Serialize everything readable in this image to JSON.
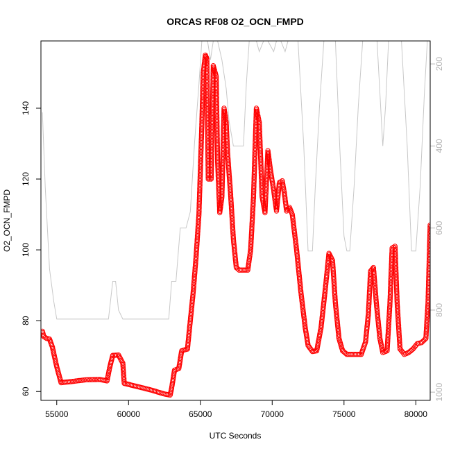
{
  "chart_data": {
    "type": "scatter",
    "title": "ORCAS RF08 O2_OCN_FMPD",
    "xlabel": "UTC Seconds",
    "ylabel": "O2_OCN_FMPD",
    "xlim": [
      53900,
      81000
    ],
    "ylim": [
      57.5,
      159
    ],
    "y2lim_reversed": [
      1020,
      144
    ],
    "x_ticks": [
      55000,
      60000,
      65000,
      70000,
      75000,
      80000
    ],
    "y_ticks": [
      60,
      80,
      100,
      120,
      140
    ],
    "y2_ticks": [
      200,
      400,
      600,
      800,
      1000
    ],
    "colors": {
      "points": "#ff0000",
      "secondary_line": "#c8c8c8",
      "secondary_axis": "#b3b3b3"
    },
    "series": [
      {
        "values_xy": [
          [
            54000,
            77.0
          ],
          [
            54100,
            75.5
          ],
          [
            54300,
            75.0
          ],
          [
            54500,
            74.8
          ],
          [
            54700,
            72.5
          ],
          [
            55000,
            67.0
          ],
          [
            55300,
            62.5
          ],
          [
            56000,
            62.8
          ],
          [
            57000,
            63.3
          ],
          [
            58000,
            63.4
          ],
          [
            58500,
            63.0
          ],
          [
            58700,
            67.0
          ],
          [
            58900,
            70.2
          ],
          [
            59300,
            70.3
          ],
          [
            59600,
            68.0
          ],
          [
            59700,
            62.3
          ],
          [
            60500,
            61.5
          ],
          [
            61500,
            60.5
          ],
          [
            62500,
            59.3
          ],
          [
            62900,
            59.0
          ],
          [
            63000,
            61.0
          ],
          [
            63200,
            66.0
          ],
          [
            63500,
            66.5
          ],
          [
            63700,
            71.5
          ],
          [
            64100,
            72.0
          ],
          [
            64300,
            80.0
          ],
          [
            64500,
            88.0
          ],
          [
            64700,
            98.0
          ],
          [
            64900,
            110.0
          ],
          [
            65100,
            135.0
          ],
          [
            65200,
            150.0
          ],
          [
            65350,
            155.0
          ],
          [
            65450,
            154.0
          ],
          [
            65550,
            120.0
          ],
          [
            65750,
            120.0
          ],
          [
            65900,
            152.0
          ],
          [
            66100,
            149.0
          ],
          [
            66200,
            125.0
          ],
          [
            66350,
            110.5
          ],
          [
            66500,
            115.0
          ],
          [
            66650,
            140.0
          ],
          [
            66800,
            136.0
          ],
          [
            66900,
            127.0
          ],
          [
            67100,
            116.0
          ],
          [
            67300,
            103.0
          ],
          [
            67500,
            95.0
          ],
          [
            67700,
            94.3
          ],
          [
            68000,
            94.3
          ],
          [
            68300,
            94.3
          ],
          [
            68500,
            100.0
          ],
          [
            68700,
            115.0
          ],
          [
            68900,
            140.0
          ],
          [
            69100,
            136.0
          ],
          [
            69300,
            115.0
          ],
          [
            69500,
            110.5
          ],
          [
            69700,
            128.0
          ],
          [
            69900,
            122.0
          ],
          [
            70100,
            117.0
          ],
          [
            70300,
            111.0
          ],
          [
            70500,
            119.0
          ],
          [
            70700,
            119.5
          ],
          [
            70850,
            116.0
          ],
          [
            71000,
            111.0
          ],
          [
            71200,
            112.0
          ],
          [
            71400,
            110.0
          ],
          [
            71700,
            100.0
          ],
          [
            72000,
            88.0
          ],
          [
            72300,
            78.0
          ],
          [
            72500,
            73.0
          ],
          [
            72800,
            71.3
          ],
          [
            73100,
            71.5
          ],
          [
            73400,
            78.0
          ],
          [
            73700,
            89.0
          ],
          [
            73950,
            99.0
          ],
          [
            74200,
            97.0
          ],
          [
            74400,
            85.0
          ],
          [
            74650,
            75.0
          ],
          [
            74900,
            71.5
          ],
          [
            75200,
            70.5
          ],
          [
            75700,
            70.5
          ],
          [
            76200,
            70.5
          ],
          [
            76500,
            74.0
          ],
          [
            76700,
            82.0
          ],
          [
            76850,
            94.0
          ],
          [
            77050,
            95.0
          ],
          [
            77250,
            85.0
          ],
          [
            77500,
            75.0
          ],
          [
            77700,
            71.0
          ],
          [
            78000,
            71.5
          ],
          [
            78200,
            85.0
          ],
          [
            78350,
            100.5
          ],
          [
            78550,
            101.0
          ],
          [
            78700,
            85.0
          ],
          [
            78900,
            72.0
          ],
          [
            79200,
            70.5
          ],
          [
            79500,
            71.0
          ],
          [
            79800,
            72.0
          ],
          [
            80100,
            73.5
          ],
          [
            80400,
            73.8
          ],
          [
            80700,
            75.0
          ],
          [
            80850,
            85.0
          ],
          [
            81000,
            107.0
          ]
        ]
      },
      {
        "axis": "right",
        "values_xy": [
          [
            54000,
            318
          ],
          [
            54200,
            500
          ],
          [
            54500,
            700
          ],
          [
            54800,
            780
          ],
          [
            55000,
            822
          ],
          [
            55500,
            822
          ],
          [
            57000,
            822
          ],
          [
            58300,
            822
          ],
          [
            58600,
            822
          ],
          [
            58900,
            730
          ],
          [
            59100,
            730
          ],
          [
            59300,
            800
          ],
          [
            59600,
            822
          ],
          [
            60500,
            822
          ],
          [
            62000,
            822
          ],
          [
            62800,
            822
          ],
          [
            63000,
            730
          ],
          [
            63300,
            730
          ],
          [
            63600,
            600
          ],
          [
            64000,
            600
          ],
          [
            64300,
            560
          ],
          [
            64600,
            390
          ],
          [
            64900,
            250
          ],
          [
            65100,
            144
          ],
          [
            65500,
            144
          ],
          [
            65700,
            190
          ],
          [
            65900,
            144
          ],
          [
            66200,
            144
          ],
          [
            66500,
            190
          ],
          [
            66800,
            260
          ],
          [
            67000,
            340
          ],
          [
            67300,
            400
          ],
          [
            67700,
            400
          ],
          [
            68000,
            400
          ],
          [
            68200,
            250
          ],
          [
            68400,
            144
          ],
          [
            68900,
            144
          ],
          [
            69100,
            170
          ],
          [
            69400,
            144
          ],
          [
            69700,
            144
          ],
          [
            70100,
            170
          ],
          [
            70300,
            144
          ],
          [
            70600,
            144
          ],
          [
            70900,
            170
          ],
          [
            71100,
            144
          ],
          [
            71500,
            144
          ],
          [
            71800,
            144
          ],
          [
            72200,
            400
          ],
          [
            72500,
            656
          ],
          [
            72800,
            656
          ],
          [
            73000,
            500
          ],
          [
            73300,
            300
          ],
          [
            73600,
            144
          ],
          [
            74000,
            144
          ],
          [
            74400,
            144
          ],
          [
            74700,
            400
          ],
          [
            75000,
            620
          ],
          [
            75200,
            656
          ],
          [
            75400,
            656
          ],
          [
            75700,
            500
          ],
          [
            76000,
            300
          ],
          [
            76300,
            144
          ],
          [
            76800,
            144
          ],
          [
            77300,
            144
          ],
          [
            77500,
            270
          ],
          [
            77700,
            400
          ],
          [
            77900,
            300
          ],
          [
            78100,
            144
          ],
          [
            78500,
            144
          ],
          [
            79000,
            144
          ],
          [
            79400,
            400
          ],
          [
            79700,
            656
          ],
          [
            80000,
            656
          ],
          [
            80300,
            500
          ],
          [
            80600,
            270
          ],
          [
            80800,
            144
          ],
          [
            81000,
            144
          ]
        ]
      }
    ]
  }
}
